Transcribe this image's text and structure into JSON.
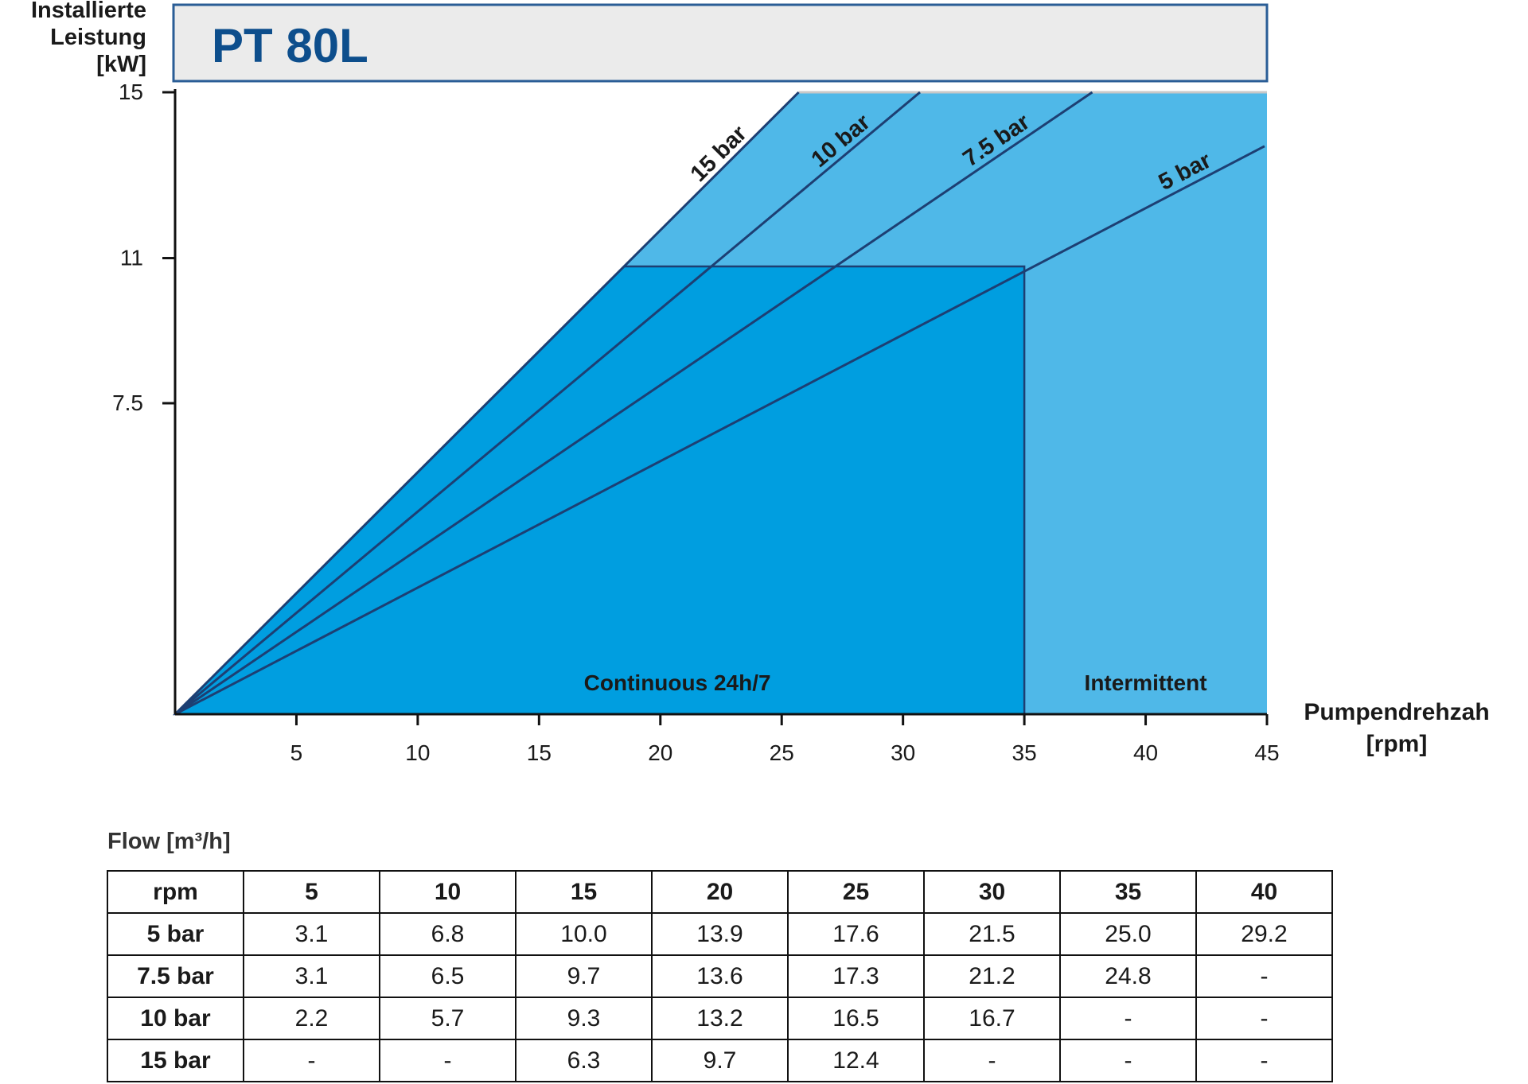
{
  "chart_data": {
    "type": "area",
    "title": "PT 80L",
    "ylabel": [
      "Installierte",
      "Leistung",
      "[kW]"
    ],
    "xlabel": [
      "Pumpendrehzah",
      "[rpm]"
    ],
    "xlim": [
      0,
      45
    ],
    "ylim": [
      0,
      15
    ],
    "x_ticks": [
      5,
      10,
      15,
      20,
      25,
      30,
      35,
      40,
      45
    ],
    "y_ticks": [
      7.5,
      11,
      15
    ],
    "series": [
      {
        "name": "15 bar",
        "x": [
          0,
          25.7
        ],
        "y": [
          0,
          15
        ]
      },
      {
        "name": "10 bar",
        "x": [
          0,
          30.7
        ],
        "y": [
          0,
          15
        ]
      },
      {
        "name": "7.5 bar",
        "x": [
          0,
          37.8
        ],
        "y": [
          0,
          15
        ]
      },
      {
        "name": "5 bar",
        "x": [
          0,
          44.9
        ],
        "y": [
          0,
          13.7
        ]
      }
    ],
    "regions": [
      {
        "name": "Continuous 24h/7",
        "x": [
          0,
          35
        ],
        "y": [
          0,
          10.8
        ],
        "color": "#009ee0"
      },
      {
        "name": "Intermittent",
        "x": [
          0,
          45
        ],
        "y": [
          0,
          15
        ],
        "color": "#4fb8e8"
      }
    ],
    "region_labels": {
      "continuous": "Continuous 24h/7",
      "intermittent": "Intermittent"
    },
    "grid": false
  },
  "colors": {
    "continuous": "#009ee0",
    "intermittent": "#4fb8e8",
    "lines": "#1d3f73",
    "title": "#0d4e8c",
    "title_box_bg": "#ebebeb",
    "title_box_border": "#2a5d96"
  },
  "table": {
    "caption": "Flow [m³/h]",
    "header": [
      "rpm",
      "5",
      "10",
      "15",
      "20",
      "25",
      "30",
      "35",
      "40"
    ],
    "rows": [
      [
        "5 bar",
        "3.1",
        "6.8",
        "10.0",
        "13.9",
        "17.6",
        "21.5",
        "25.0",
        "29.2"
      ],
      [
        "7.5 bar",
        "3.1",
        "6.5",
        "9.7",
        "13.6",
        "17.3",
        "21.2",
        "24.8",
        "-"
      ],
      [
        "10 bar",
        "2.2",
        "5.7",
        "9.3",
        "13.2",
        "16.5",
        "16.7",
        "-",
        "-"
      ],
      [
        "15 bar",
        "-",
        "-",
        "6.3",
        "9.7",
        "12.4",
        "-",
        "-",
        "-"
      ]
    ]
  }
}
